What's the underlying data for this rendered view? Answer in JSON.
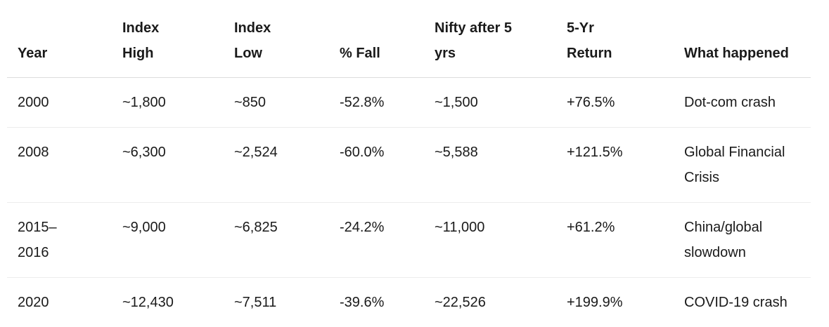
{
  "table": {
    "headers": [
      "Year",
      "Index High",
      "Index Low",
      "% Fall",
      "Nifty after 5 yrs",
      "5-Yr Return",
      "What happened"
    ],
    "rows": [
      [
        "2000",
        "~1,800",
        "~850",
        "-52.8%",
        "~1,500",
        "+76.5%",
        "Dot-com crash"
      ],
      [
        "2008",
        "~6,300",
        "~2,524",
        "-60.0%",
        "~5,588",
        "+121.5%",
        "Global Financial Crisis"
      ],
      [
        "2015–2016",
        "~9,000",
        "~6,825",
        "-24.2%",
        "~11,000",
        "+61.2%",
        "China/global slowdown"
      ],
      [
        "2020",
        "~12,430",
        "~7,511",
        "-39.6%",
        "~22,526",
        "+199.9%",
        "COVID-19 crash"
      ]
    ]
  }
}
